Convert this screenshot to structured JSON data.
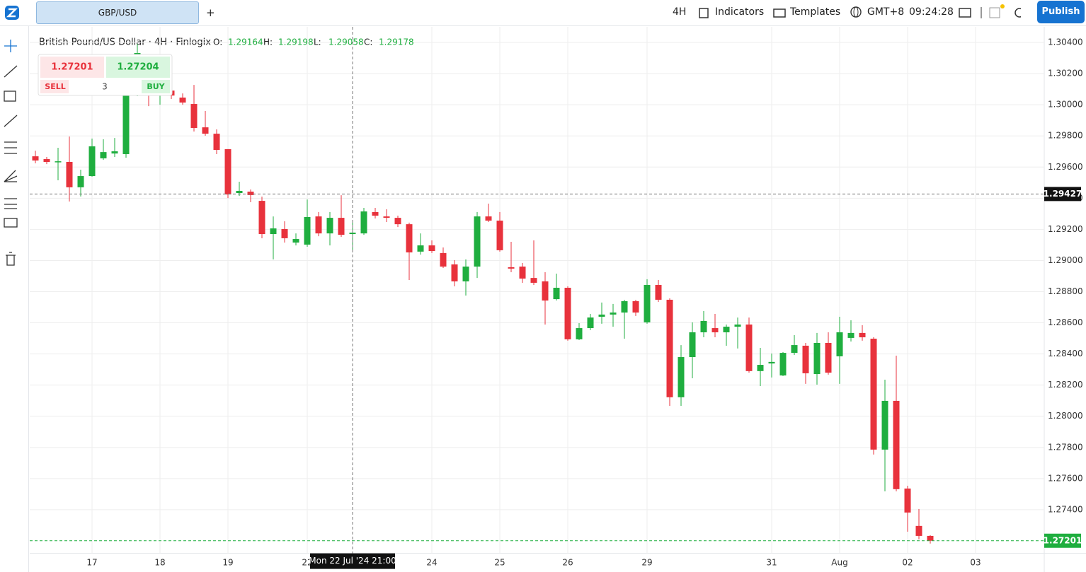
{
  "toolbar": {
    "tab": "GBP/USD",
    "add": "+",
    "interval": "4H",
    "indicators": "Indicators",
    "templates": "Templates",
    "timezone": "GMT+8",
    "clock": "09:24:28",
    "publish": "Publish"
  },
  "trade_widget": {
    "sell_price": 1.27201,
    "buy_price": 1.27204,
    "sell": "SELL",
    "quantity": 3,
    "buy": "BUY"
  },
  "chart_data": {
    "type": "candlestick",
    "title": "British Pound/US Dollar · 4H · Finlogix",
    "ohlc_legend": [
      {
        "label": "O:",
        "value": 1.29164
      },
      {
        "label": "H:",
        "value": 1.29198
      },
      {
        "label": "L:",
        "value": 1.29058
      },
      {
        "label": "C:",
        "value": 1.29178
      }
    ],
    "categories": [
      null,
      null,
      null,
      null,
      null,
      "17",
      null,
      null,
      null,
      null,
      null,
      "18",
      null,
      null,
      null,
      null,
      null,
      "19",
      null,
      null,
      null,
      null,
      null,
      null,
      "22",
      null,
      null,
      null,
      null,
      null,
      null,
      null,
      null,
      null,
      null,
      "24",
      null,
      null,
      null,
      null,
      null,
      "25",
      null,
      null,
      null,
      null,
      null,
      "26",
      null,
      null,
      null,
      null,
      null,
      null,
      "29",
      null,
      null,
      null,
      null,
      null,
      null,
      null,
      null,
      null,
      null,
      "31",
      null,
      null,
      null,
      null,
      null,
      "Aug",
      null,
      null,
      null,
      null,
      null,
      "02",
      null,
      null,
      null,
      null,
      null,
      "03"
    ],
    "open": [
      1.29669,
      1.29651,
      1.29633,
      1.29633,
      1.2947,
      1.29542,
      1.29656,
      1.29687,
      1.29683,
      1.30064,
      1.30173,
      1.30059,
      1.30091,
      1.30046,
      1.30005,
      1.29855,
      1.29814,
      1.29715,
      1.29433,
      1.29442,
      1.29383,
      1.2917,
      1.29202,
      1.29115,
      1.29102,
      1.29283,
      1.29174,
      1.29274,
      1.2917,
      1.29174,
      1.29311,
      1.29283,
      1.29274,
      1.29233,
      1.29057,
      1.29097,
      1.29048,
      1.28975,
      1.28866,
      1.28961,
      1.29283,
      1.29256,
      1.28957,
      1.28961,
      1.28888,
      1.28866,
      1.28752,
      1.28825,
      1.28494,
      1.28566,
      1.28639,
      1.28653,
      1.28666,
      1.28739,
      1.28603,
      1.28843,
      1.28748,
      1.28122,
      1.2838,
      1.28539,
      1.28566,
      1.28539,
      1.28575,
      1.28589,
      1.2829,
      1.28339,
      1.28262,
      1.28407,
      1.28453,
      1.28271,
      1.28471,
      1.28385,
      1.28503,
      1.28535,
      1.28498,
      1.27786,
      1.28099,
      1.27536,
      1.27296,
      1.27232,
      null,
      null,
      null,
      null
    ],
    "high": [
      1.29705,
      1.29665,
      1.29724,
      1.29796,
      1.29583,
      1.29783,
      1.29778,
      1.29787,
      1.30173,
      1.30391,
      1.30241,
      1.3015,
      1.30127,
      1.30073,
      1.30127,
      1.2996,
      1.29842,
      1.29715,
      1.29506,
      1.29456,
      1.2941,
      1.29283,
      1.29252,
      1.29174,
      1.29392,
      1.29311,
      1.29311,
      1.29419,
      1.29247,
      1.29338,
      1.29338,
      1.29329,
      1.29288,
      1.29243,
      1.29174,
      1.29129,
      1.29084,
      1.29002,
      1.29007,
      1.29311,
      1.29365,
      1.29311,
      1.2912,
      1.28984,
      1.29129,
      1.28925,
      1.28916,
      1.28834,
      1.28598,
      1.28657,
      1.2873,
      1.28721,
      1.28748,
      1.28748,
      1.2888,
      1.28875,
      1.28757,
      1.28457,
      1.28603,
      1.28675,
      1.28657,
      1.28589,
      1.28634,
      1.28634,
      1.28439,
      1.28403,
      1.28412,
      1.28521,
      1.28471,
      1.28535,
      1.28539,
      1.28639,
      1.28616,
      1.28585,
      1.28507,
      1.28235,
      1.28389,
      1.27554,
      1.27405,
      1.27237,
      null,
      null,
      null,
      null
    ],
    "low": [
      1.29624,
      1.29619,
      1.29515,
      1.29379,
      1.29411,
      1.29538,
      1.29646,
      1.29665,
      1.2966,
      1.30055,
      1.29991,
      1.3,
      1.30037,
      1.3,
      1.29828,
      1.29801,
      1.29683,
      1.29401,
      1.29415,
      1.29374,
      1.29143,
      1.29007,
      1.29115,
      1.29097,
      1.29088,
      1.29156,
      1.29097,
      1.29152,
      1.29061,
      1.29165,
      1.2927,
      1.29247,
      1.29215,
      1.28875,
      1.29038,
      1.29048,
      1.28952,
      1.28834,
      1.28775,
      1.28888,
      1.29247,
      1.29057,
      1.28925,
      1.28857,
      1.28843,
      1.28589,
      1.28743,
      1.28485,
      1.28489,
      1.28553,
      1.28594,
      1.28575,
      1.28498,
      1.28644,
      1.28594,
      1.28734,
      1.28067,
      1.28067,
      1.28244,
      1.28507,
      1.28507,
      1.28453,
      1.28435,
      1.2828,
      1.28194,
      1.28249,
      1.28258,
      1.28394,
      1.28208,
      1.28203,
      1.28267,
      1.28208,
      1.2848,
      1.28485,
      1.27754,
      1.27518,
      1.27518,
      1.27259,
      1.2721,
      1.27183,
      null,
      null,
      null,
      null
    ],
    "close": [
      1.29642,
      1.29633,
      1.29637,
      1.2947,
      1.29542,
      1.29733,
      1.29696,
      1.29701,
      1.30064,
      1.30332,
      1.30082,
      1.30127,
      1.30059,
      1.30014,
      1.29851,
      1.29814,
      1.2971,
      1.29424,
      1.29447,
      1.2942,
      1.2917,
      1.29206,
      1.29143,
      1.29138,
      1.29279,
      1.29174,
      1.29274,
      1.29165,
      1.29179,
      1.29315,
      1.29288,
      1.29274,
      1.29233,
      1.29052,
      1.29097,
      1.29061,
      1.28961,
      1.28866,
      1.28961,
      1.29283,
      1.29256,
      1.29066,
      1.28948,
      1.28884,
      1.28857,
      1.28743,
      1.28825,
      1.28494,
      1.28566,
      1.28634,
      1.28653,
      1.28666,
      1.28739,
      1.28666,
      1.28843,
      1.28748,
      1.28122,
      1.2838,
      1.28539,
      1.28612,
      1.28539,
      1.28575,
      1.28589,
      1.2829,
      1.2833,
      1.28349,
      1.28407,
      1.28457,
      1.28276,
      1.28471,
      1.2828,
      1.28539,
      1.28535,
      1.28507,
      1.27786,
      1.28099,
      1.27532,
      1.27382,
      1.27232,
      1.27201,
      null,
      null,
      null,
      null
    ],
    "up_color": "#1fae3f",
    "down_color": "#e8323c",
    "ylim": [
      1.2712,
      1.305
    ],
    "yticks": [
      {
        "value": 1.304,
        "label": "1.30400"
      },
      {
        "value": 1.302,
        "label": "1.30200"
      },
      {
        "value": 1.3,
        "label": "1.30000"
      },
      {
        "value": 1.298,
        "label": "1.29800"
      },
      {
        "value": 1.296,
        "label": "1.29600"
      },
      {
        "value": 1.294,
        "label": "1.29400"
      },
      {
        "value": 1.292,
        "label": "1.29200"
      },
      {
        "value": 1.29,
        "label": "1.29000"
      },
      {
        "value": 1.288,
        "label": "1.28800"
      },
      {
        "value": 1.286,
        "label": "1.28600"
      },
      {
        "value": 1.284,
        "label": "1.28400"
      },
      {
        "value": 1.282,
        "label": "1.28200"
      },
      {
        "value": 1.28,
        "label": "1.28000"
      },
      {
        "value": 1.278,
        "label": "1.27800"
      },
      {
        "value": 1.276,
        "label": "1.27600"
      },
      {
        "value": 1.274,
        "label": "1.27400"
      }
    ],
    "grid": true,
    "crosshair": {
      "index": 28,
      "price": 1.29427,
      "time_label": "Mon 22 Jul '24 21:00"
    },
    "last_price": 1.27201
  }
}
